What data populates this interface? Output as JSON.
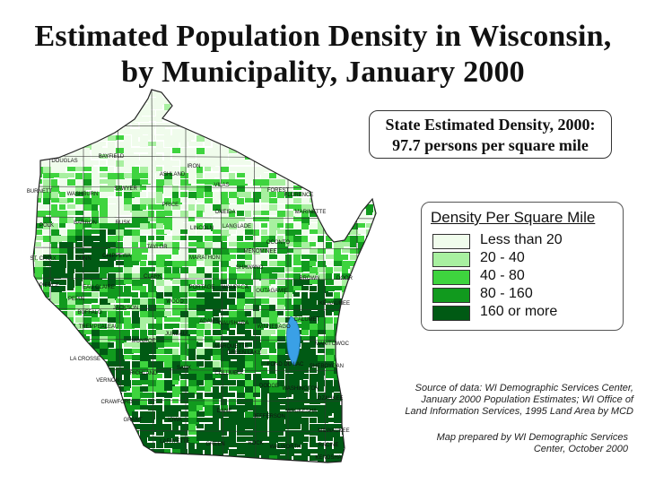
{
  "title": {
    "line1": "Estimated Population Density in Wisconsin,",
    "line2": "by Municipality, January 2000"
  },
  "state_density": {
    "line1": "State Estimated Density, 2000:",
    "line2": "97.7 persons per square mile"
  },
  "legend": {
    "title": "Density Per Square Mile",
    "items": [
      {
        "label": "Less than 20",
        "color": "#f0fcec"
      },
      {
        "label": "20 - 40",
        "color": "#a8f0a0"
      },
      {
        "label": "40 - 80",
        "color": "#3ed43e"
      },
      {
        "label": "80 - 160",
        "color": "#119a1e"
      },
      {
        "label": "160 or more",
        "color": "#005a14"
      }
    ]
  },
  "source_note": {
    "line1": "Source of data: WI Demographic Services Center,",
    "line2": "January 2000 Population Estimates; WI Office of",
    "line3": "Land Information Services, 1995 Land Area by MCD"
  },
  "prepared_note": {
    "line1": "Map prepared by WI Demographic Services",
    "line2": "Center, October 2000"
  },
  "county_labels": [
    "DOUGLAS",
    "BAYFIELD",
    "ASHLAND",
    "IRON",
    "VILAS",
    "FOREST",
    "FLORENCE",
    "MARINETTE",
    "BURNETT",
    "WASHBURN",
    "SAWYER",
    "PRICE",
    "ONEIDA",
    "POLK",
    "BARRON",
    "RUSK",
    "LINCOLN",
    "LANGLADE",
    "OCONTO",
    "MENOMINEE",
    "ST. CROIX",
    "DUNN",
    "CHIPPEWA",
    "TAYLOR",
    "MARATHON",
    "SHAWANO",
    "DOOR",
    "PIERCE",
    "EAU CLAIRE",
    "CLARK",
    "PORTAGE",
    "WAUPACA",
    "OUTAGAMIE",
    "BROWN",
    "KEWAUNEE",
    "PEPIN",
    "BUFFALO",
    "JACKSON",
    "WOOD",
    "WAUSHARA",
    "WINNEBAGO",
    "CALUMET",
    "MANITOWOC",
    "TREMPEALEAU",
    "MONROE",
    "JUNEAU",
    "ADAMS",
    "MARQUETTE",
    "GREEN LAKE",
    "FOND DU LAC",
    "SHEBOYGAN",
    "LA CROSSE",
    "VERNON",
    "SAUK",
    "COLUMBIA",
    "DODGE",
    "WASHINGTON",
    "OZAUKEE",
    "RICHLAND",
    "CRAWFORD",
    "DANE",
    "JEFFERSON",
    "WAUKESHA",
    "MILWAUKEE",
    "GRANT",
    "IOWA",
    "LAFAYETTE",
    "GREEN",
    "ROCK",
    "WALWORTH",
    "RACINE",
    "KENOSHA"
  ]
}
